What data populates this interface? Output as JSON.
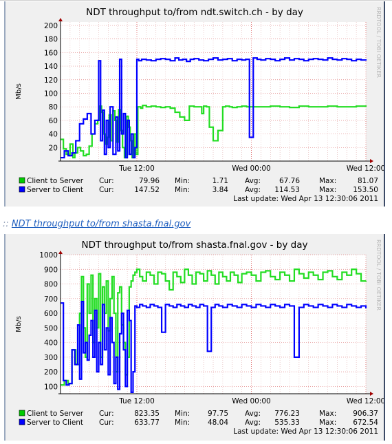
{
  "charts": [
    {
      "title": "NDT throughput to/from ndt.switch.ch - by day",
      "watermark": "RRDTOOL / TOBI OETIKER",
      "ylabel": "Mb/s",
      "legend": {
        "headers": {
          "cur": "Cur:",
          "min": "Min:",
          "avg": "Avg:",
          "max": "Max:"
        },
        "rows": [
          {
            "name": "Client to Server",
            "color": "#00cc00",
            "cur": "79.96",
            "min": "1.71",
            "avg": "67.76",
            "max": "81.07"
          },
          {
            "name": "Server to Client",
            "color": "#0000ff",
            "cur": "147.52",
            "min": "3.84",
            "avg": "114.53",
            "max": "153.50"
          }
        ],
        "last_update": "Last update: Wed Apr 13 12:30:06 2011"
      }
    },
    {
      "title": "NDT throughput to/from shasta.fnal.gov - by day",
      "watermark": "RRDTOOL / TOBI OETIKER",
      "ylabel": "Mb/s",
      "legend": {
        "headers": {
          "cur": "Cur:",
          "min": "Min:",
          "avg": "Avg:",
          "max": "Max:"
        },
        "rows": [
          {
            "name": "Client to Server",
            "color": "#00cc00",
            "cur": "823.35",
            "min": "97.75",
            "avg": "776.23",
            "max": "906.37"
          },
          {
            "name": "Server to Client",
            "color": "#0000ff",
            "cur": "633.77",
            "min": "48.04",
            "avg": "535.33",
            "max": "672.54"
          }
        ],
        "last_update": "Last update: Wed Apr 13 12:30:06 2011"
      }
    }
  ],
  "link": {
    "prefix": "::",
    "text": "NDT throughput to/from shasta.fnal.gov"
  },
  "chart_data": [
    {
      "type": "line",
      "title": "NDT throughput to/from ndt.switch.ch - by day",
      "ylabel": "Mb/s",
      "xlabel": "",
      "x_domain_hours": [
        0,
        32
      ],
      "x_tick_labels": [
        {
          "label": "Tue 12:00",
          "x": 8
        },
        {
          "label": "Wed 00:00",
          "x": 20
        },
        {
          "label": "Wed 12:00",
          "x": 32
        }
      ],
      "ylim": [
        0,
        205
      ],
      "y_ticks": [
        20,
        40,
        60,
        80,
        100,
        120,
        140,
        160,
        180,
        200
      ],
      "grid": true,
      "series": [
        {
          "name": "Client to Server",
          "color": "#22dd22",
          "x": [
            0,
            0.3,
            0.6,
            1.0,
            1.3,
            1.5,
            1.8,
            2.1,
            2.4,
            2.7,
            3.0,
            3.3,
            3.6,
            3.9,
            4.1,
            4.3,
            4.5,
            4.7,
            4.9,
            5.1,
            5.3,
            5.5,
            5.7,
            5.9,
            6.1,
            6.3,
            6.5,
            6.7,
            6.9,
            7.1,
            7.3,
            7.5,
            7.7,
            7.9,
            8.1,
            8.4,
            8.6,
            9.0,
            9.5,
            10.0,
            10.5,
            11.0,
            11.5,
            12.0,
            12.5,
            13.0,
            13.5,
            14.0,
            14.5,
            14.8,
            15.0,
            15.3,
            15.6,
            16.0,
            16.5,
            17.0,
            17.3,
            17.7,
            18.0,
            18.5,
            19.0,
            19.5,
            20.0,
            21.0,
            22.0,
            23.0,
            24.0,
            25.0,
            26.0,
            27.0,
            28.0,
            29.0,
            30.0,
            31.0,
            32.0
          ],
          "values": [
            32,
            18,
            10,
            25,
            5,
            12,
            20,
            15,
            8,
            10,
            22,
            40,
            55,
            60,
            81,
            72,
            40,
            25,
            35,
            68,
            30,
            74,
            60,
            28,
            76,
            45,
            20,
            5,
            66,
            50,
            30,
            5,
            40,
            10,
            80,
            78,
            82,
            80,
            81,
            80,
            79,
            80,
            78,
            72,
            65,
            60,
            81,
            80,
            80,
            70,
            81,
            80,
            50,
            30,
            45,
            80,
            81,
            80,
            79,
            80,
            81,
            80,
            80,
            80,
            81,
            80,
            79,
            81,
            80,
            80,
            81,
            80,
            80,
            81,
            80
          ]
        },
        {
          "name": "Server to Client",
          "color": "#0000ff",
          "x": [
            0,
            0.4,
            0.8,
            1.2,
            1.6,
            2.0,
            2.4,
            2.8,
            3.2,
            3.6,
            4.0,
            4.2,
            4.4,
            4.6,
            4.8,
            5.0,
            5.2,
            5.5,
            5.8,
            6.0,
            6.2,
            6.4,
            6.6,
            6.8,
            7.0,
            7.2,
            7.4,
            7.6,
            7.8,
            8.0,
            8.2,
            8.5,
            9.0,
            9.5,
            10.0,
            10.5,
            11.0,
            11.5,
            12.0,
            12.4,
            12.8,
            13.2,
            13.6,
            14.0,
            14.5,
            15.0,
            15.5,
            16.0,
            16.5,
            17.0,
            17.5,
            18.0,
            18.5,
            19.0,
            19.4,
            19.8,
            20.2,
            20.6,
            21.0,
            21.5,
            22.0,
            22.5,
            23.0,
            23.5,
            24.0,
            24.5,
            25.0,
            25.5,
            26.0,
            26.5,
            27.0,
            27.5,
            28.0,
            28.5,
            29.0,
            29.5,
            30.0,
            30.5,
            31.0,
            31.5,
            32.0
          ],
          "values": [
            5,
            15,
            8,
            12,
            30,
            55,
            62,
            70,
            40,
            60,
            148,
            30,
            75,
            10,
            60,
            20,
            80,
            10,
            65,
            15,
            150,
            40,
            70,
            5,
            60,
            10,
            40,
            5,
            20,
            150,
            148,
            150,
            149,
            148,
            150,
            151,
            150,
            148,
            152,
            149,
            150,
            147,
            150,
            151,
            149,
            148,
            150,
            152,
            149,
            150,
            151,
            148,
            150,
            149,
            150,
            35,
            152,
            150,
            149,
            151,
            150,
            148,
            150,
            152,
            149,
            151,
            150,
            148,
            150,
            151,
            150,
            149,
            152,
            150,
            149,
            151,
            150,
            148,
            150,
            149,
            148
          ]
        }
      ]
    },
    {
      "type": "line",
      "title": "NDT throughput to/from shasta.fnal.gov - by day",
      "ylabel": "Mb/s",
      "xlabel": "",
      "x_domain_hours": [
        0,
        32
      ],
      "x_tick_labels": [
        {
          "label": "Tue 12:00",
          "x": 8
        },
        {
          "label": "Wed 00:00",
          "x": 20
        },
        {
          "label": "Wed 12:00",
          "x": 32
        }
      ],
      "ylim": [
        50,
        1000
      ],
      "y_ticks": [
        100,
        200,
        300,
        400,
        500,
        600,
        700,
        800,
        900,
        1000
      ],
      "grid": true,
      "series": [
        {
          "name": "Client to Server",
          "color": "#22dd22",
          "x": [
            0,
            0.4,
            0.8,
            1.2,
            1.6,
            2.0,
            2.2,
            2.4,
            2.6,
            2.8,
            3.0,
            3.2,
            3.4,
            3.6,
            3.8,
            4.0,
            4.2,
            4.4,
            4.6,
            4.8,
            5.0,
            5.2,
            5.4,
            5.6,
            5.8,
            6.0,
            6.2,
            6.4,
            6.6,
            6.8,
            7.0,
            7.2,
            7.4,
            7.6,
            7.8,
            8.0,
            8.3,
            8.6,
            9.0,
            9.4,
            9.8,
            10.2,
            10.6,
            11.0,
            11.4,
            11.8,
            12.2,
            12.6,
            13.0,
            13.4,
            13.8,
            14.2,
            14.6,
            15.0,
            15.4,
            15.8,
            16.2,
            16.6,
            17.0,
            17.4,
            17.8,
            18.2,
            18.6,
            19.0,
            19.5,
            20.0,
            20.5,
            21.0,
            21.5,
            22.0,
            22.5,
            23.0,
            23.5,
            24.0,
            24.5,
            25.0,
            25.5,
            26.0,
            26.5,
            27.0,
            27.5,
            28.0,
            28.5,
            29.0,
            29.5,
            30.0,
            30.5,
            31.0,
            31.5,
            32.0
          ],
          "values": [
            110,
            140,
            120,
            350,
            250,
            600,
            850,
            500,
            300,
            800,
            600,
            860,
            400,
            700,
            500,
            870,
            300,
            780,
            600,
            820,
            480,
            700,
            850,
            600,
            200,
            740,
            780,
            520,
            400,
            180,
            300,
            780,
            820,
            860,
            880,
            900,
            850,
            820,
            880,
            860,
            800,
            880,
            870,
            820,
            760,
            880,
            850,
            810,
            900,
            860,
            800,
            880,
            870,
            820,
            890,
            860,
            800,
            880,
            850,
            820,
            880,
            860,
            810,
            870,
            880,
            860,
            820,
            880,
            890,
            850,
            830,
            880,
            860,
            820,
            900,
            870,
            840,
            880,
            860,
            830,
            880,
            890,
            850,
            830,
            880,
            860,
            900,
            870,
            820,
            823
          ]
        },
        {
          "name": "Server to Client",
          "color": "#0000ff",
          "x": [
            0,
            0.3,
            0.6,
            0.9,
            1.2,
            1.5,
            1.8,
            2.0,
            2.2,
            2.4,
            2.6,
            2.8,
            3.0,
            3.2,
            3.4,
            3.6,
            3.8,
            4.0,
            4.2,
            4.4,
            4.6,
            4.8,
            5.0,
            5.2,
            5.4,
            5.6,
            5.8,
            6.0,
            6.2,
            6.4,
            6.6,
            6.8,
            7.0,
            7.2,
            7.4,
            7.6,
            7.8,
            8.0,
            8.3,
            8.6,
            9.0,
            9.4,
            9.8,
            10.2,
            10.6,
            11.0,
            11.4,
            11.8,
            12.2,
            12.6,
            13.0,
            13.4,
            13.8,
            14.2,
            14.6,
            15.0,
            15.4,
            15.8,
            16.2,
            16.6,
            17.0,
            17.5,
            18.0,
            18.5,
            19.0,
            19.5,
            20.0,
            20.5,
            21.0,
            21.5,
            22.0,
            22.5,
            23.0,
            23.5,
            24.0,
            24.5,
            25.0,
            25.5,
            26.0,
            26.5,
            27.0,
            27.5,
            28.0,
            28.5,
            29.0,
            29.5,
            30.0,
            30.5,
            31.0,
            31.5,
            32.0
          ],
          "values": [
            670,
            140,
            110,
            120,
            350,
            250,
            520,
            150,
            680,
            330,
            400,
            280,
            450,
            550,
            300,
            620,
            200,
            400,
            250,
            660,
            350,
            500,
            180,
            570,
            400,
            120,
            300,
            80,
            460,
            600,
            350,
            100,
            620,
            550,
            60,
            200,
            650,
            640,
            660,
            650,
            640,
            660,
            650,
            640,
            470,
            660,
            650,
            640,
            660,
            650,
            640,
            660,
            650,
            640,
            660,
            650,
            340,
            640,
            660,
            650,
            640,
            660,
            650,
            640,
            660,
            650,
            640,
            660,
            650,
            640,
            660,
            650,
            640,
            660,
            650,
            300,
            640,
            660,
            650,
            640,
            660,
            650,
            640,
            660,
            650,
            640,
            660,
            650,
            640,
            650,
            634
          ]
        }
      ]
    }
  ]
}
